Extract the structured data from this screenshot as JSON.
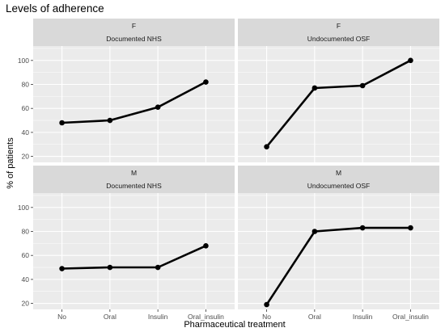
{
  "chart_data": {
    "type": "line",
    "title": "Levels of adherence",
    "xlabel": "Pharmaceutical treatment",
    "ylabel": "% of patients",
    "categories": [
      "No",
      "Oral",
      "Insulin",
      "Oral_insulin"
    ],
    "ylim": [
      15,
      112
    ],
    "yticks": [
      20,
      40,
      60,
      80,
      100
    ],
    "grid": true,
    "colors": {
      "panel_bg": "#ebebeb",
      "strip_bg": "#d9d9d9",
      "grid": "#ffffff",
      "line": "#000000"
    },
    "panels": [
      {
        "row": "F",
        "col": "Documented NHS",
        "values": [
          48,
          50,
          61,
          82
        ]
      },
      {
        "row": "F",
        "col": "Undocumented OSF",
        "values": [
          28,
          77,
          79,
          100
        ]
      },
      {
        "row": "M",
        "col": "Documented NHS",
        "values": [
          49,
          50,
          50,
          68
        ]
      },
      {
        "row": "M",
        "col": "Undocumented OSF",
        "values": [
          19,
          80,
          83,
          83
        ]
      }
    ]
  }
}
